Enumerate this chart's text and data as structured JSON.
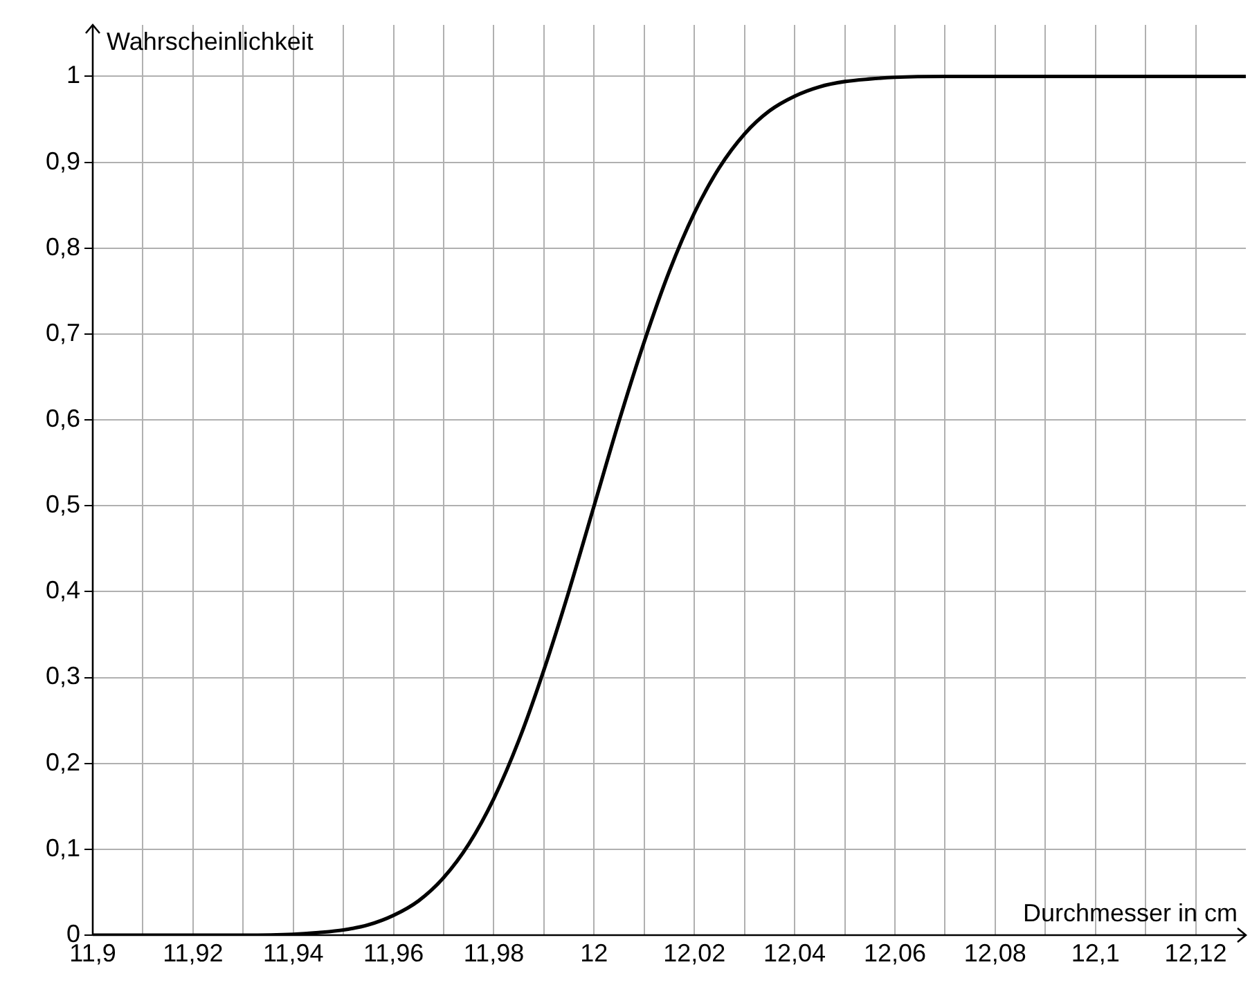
{
  "chart_data": {
    "type": "line",
    "xlabel": "Durchmesser in cm",
    "ylabel": "Wahrscheinlichkeit",
    "x": [
      11.9,
      11.92,
      11.93,
      11.94,
      11.945,
      11.95,
      11.955,
      11.96,
      11.965,
      11.97,
      11.975,
      11.98,
      11.985,
      11.99,
      11.995,
      12,
      12.005,
      12.01,
      12.015,
      12.02,
      12.025,
      12.03,
      12.035,
      12.04,
      12.045,
      12.05,
      12.055,
      12.06,
      12.07,
      12.08,
      12.1,
      12.13
    ],
    "series": [
      {
        "color": "#000000",
        "values": [
          0,
          0,
          0,
          0.001,
          0.003,
          0.006,
          0.012,
          0.023,
          0.04,
          0.067,
          0.106,
          0.159,
          0.227,
          0.309,
          0.401,
          0.5,
          0.599,
          0.691,
          0.773,
          0.841,
          0.894,
          0.933,
          0.96,
          0.977,
          0.988,
          0.994,
          0.997,
          0.999,
          1,
          1,
          1,
          1
        ]
      }
    ],
    "xlim": [
      11.9,
      12.13
    ],
    "xticks": [
      {
        "value": 11.9,
        "label": "11,9"
      },
      {
        "value": 11.91,
        "label": null
      },
      {
        "value": 11.92,
        "label": "11,92"
      },
      {
        "value": 11.93,
        "label": null
      },
      {
        "value": 11.94,
        "label": "11,94"
      },
      {
        "value": 11.95,
        "label": null
      },
      {
        "value": 11.96,
        "label": "11,96"
      },
      {
        "value": 11.97,
        "label": null
      },
      {
        "value": 11.98,
        "label": "11,98"
      },
      {
        "value": 11.99,
        "label": null
      },
      12,
      {
        "value": 12.01,
        "label": null
      },
      {
        "value": 12.02,
        "label": "12,02"
      },
      {
        "value": 12.03,
        "label": null
      },
      {
        "value": 12.04,
        "label": "12,04"
      },
      {
        "value": 12.05,
        "label": null
      },
      {
        "value": 12.06,
        "label": "12,06"
      },
      {
        "value": 12.07,
        "label": null
      },
      {
        "value": 12.08,
        "label": "12,08"
      },
      {
        "value": 12.09,
        "label": null
      },
      {
        "value": 12.1,
        "label": "12,1"
      },
      {
        "value": 12.11,
        "label": null
      },
      {
        "value": 12.12,
        "label": "12,12"
      }
    ],
    "ylim": [
      0,
      1.06
    ],
    "yticks": [
      0,
      {
        "value": 0.1,
        "label": "0,1"
      },
      {
        "value": 0.2,
        "label": "0,2"
      },
      {
        "value": 0.3,
        "label": "0,3"
      },
      {
        "value": 0.4,
        "label": "0,4"
      },
      {
        "value": 0.5,
        "label": "0,5"
      },
      {
        "value": 0.6,
        "label": "0,6"
      },
      {
        "value": 0.7,
        "label": "0,7"
      },
      {
        "value": 0.8,
        "label": "0,8"
      },
      {
        "value": 0.9,
        "label": "0,9"
      },
      1
    ],
    "grid": true,
    "legend": false,
    "marker": "none",
    "line_style": "solid"
  }
}
